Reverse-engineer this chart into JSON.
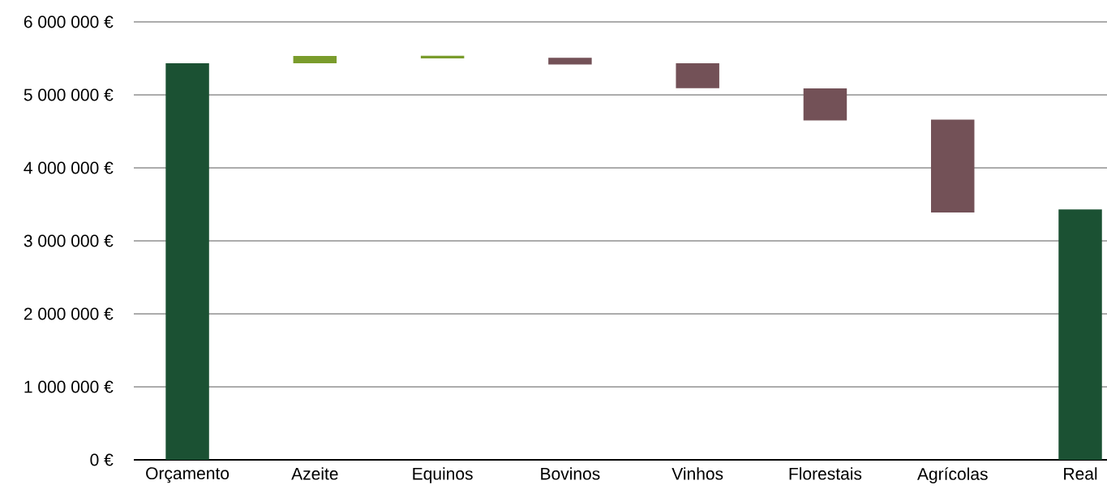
{
  "chart_data": {
    "type": "bar",
    "categories": [
      "Orçamento",
      "Azeite",
      "Equinos",
      "Bovinos",
      "Vinhos",
      "Florestais",
      "Agrícolas",
      "Real"
    ],
    "base": [
      0,
      5432000,
      5500000,
      5509000,
      5432000,
      5090000,
      4660000,
      0
    ],
    "values": [
      5432000,
      100000,
      35000,
      -93000,
      -340000,
      -440000,
      -1270000,
      3430000
    ],
    "colors": [
      "#1b5133",
      "#7a9c2c",
      "#7a9c2c",
      "#735157",
      "#735157",
      "#735157",
      "#735157",
      "#1b5133"
    ],
    "ylim": [
      0,
      6000000
    ],
    "yticks": [
      {
        "value": 0,
        "label": "0 €"
      },
      {
        "value": 1000000,
        "label": "1 000 000 €"
      },
      {
        "value": 2000000,
        "label": "2 000 000 €"
      },
      {
        "value": 3000000,
        "label": "3 000 000 €"
      },
      {
        "value": 4000000,
        "label": "4 000 000 €"
      },
      {
        "value": 5000000,
        "label": "5 000 000 €"
      },
      {
        "value": 6000000,
        "label": "6 000 000 €"
      }
    ],
    "grid": "y"
  }
}
